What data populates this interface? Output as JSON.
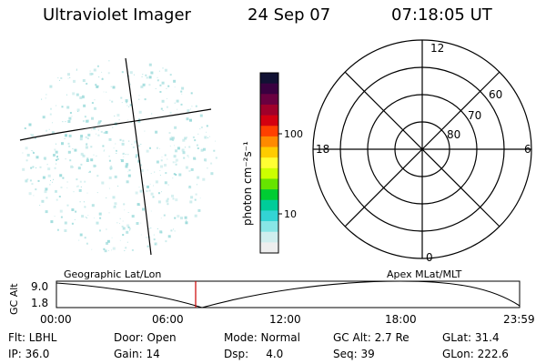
{
  "header": {
    "title": "Ultraviolet Imager",
    "date": "24 Sep 07",
    "time": "07:18:05 UT"
  },
  "colorbar": {
    "unit_label": "photon cm⁻²s⁻¹",
    "ticks": [
      "100",
      "10"
    ],
    "colors": [
      "#111133",
      "#3a0040",
      "#6a0040",
      "#a0002a",
      "#d40010",
      "#ff4000",
      "#ff8a00",
      "#ffcc00",
      "#ffff33",
      "#ccff00",
      "#66e400",
      "#00cc33",
      "#00cc99",
      "#33d4d4",
      "#88e6e6",
      "#cfeeee",
      "#eeeeee"
    ]
  },
  "polar_plot": {
    "mlt_labels": {
      "top": "12",
      "right": "6",
      "bottom": "0",
      "left": "18"
    },
    "lat_labels": [
      "60",
      "70",
      "80"
    ],
    "line_color": "#000000"
  },
  "timeline": {
    "left_title": "Geographic Lat/Lon",
    "right_title": "Apex MLat/MLT",
    "axis_title": "GC Alt",
    "y_labels": [
      "9.0",
      "1.8"
    ],
    "x_labels": [
      "00:00",
      "06:00",
      "12:00",
      "18:00",
      "23:59"
    ],
    "marker_color": "#cc0000"
  },
  "info": {
    "row1": [
      "Flt: LBHL",
      "Door: Open",
      "Mode: Normal",
      "GC Alt: 2.7 Re",
      "GLat: 31.4"
    ],
    "row2": [
      "IP: 36.0",
      "Gain: 14",
      "Dsp:     4.0",
      "Seq: 39",
      "GLon: 222.6"
    ]
  },
  "image_panel": {
    "speckle_color": "#9adada"
  }
}
